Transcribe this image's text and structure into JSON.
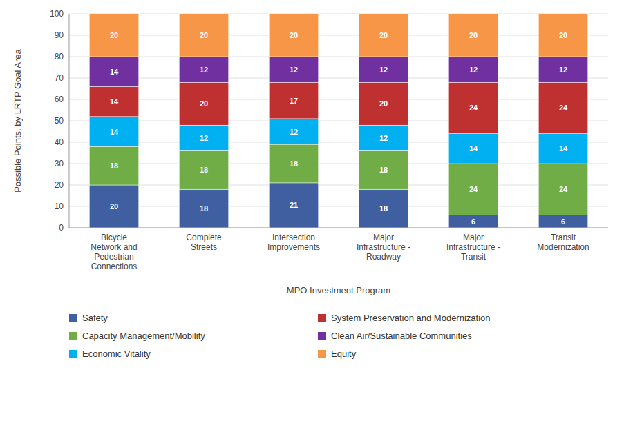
{
  "chart_data": {
    "type": "bar",
    "stacked": true,
    "data_labels": true,
    "grid": true,
    "legend": "bottom",
    "xlabel": "MPO Investment Program",
    "ylabel": "Possible Points, by LRTP Goal Area",
    "categories": [
      "Bicycle\nNetwork and\nPedestrian\nConnections",
      "Complete\nStreets",
      "Intersection\nImprovements",
      "Major\nInfrastructure -\nRoadway",
      "Major\nInfrastructure -\nTransit",
      "Transit\nModernization"
    ],
    "series": [
      {
        "name": "Safety",
        "color": "#3f5fa0",
        "values": [
          20,
          18,
          21,
          18,
          6,
          6
        ]
      },
      {
        "name": "Capacity Management/Mobility",
        "color": "#70ad47",
        "values": [
          18,
          18,
          18,
          18,
          24,
          24
        ]
      },
      {
        "name": "Economic Vitality",
        "color": "#00b0f0",
        "values": [
          14,
          12,
          12,
          12,
          14,
          14
        ]
      },
      {
        "name": "System Preservation and Modernization",
        "color": "#bf3030",
        "values": [
          14,
          20,
          17,
          20,
          24,
          24
        ]
      },
      {
        "name": "Clean Air/Sustainable Communities",
        "color": "#7030a0",
        "values": [
          14,
          12,
          12,
          12,
          12,
          12
        ]
      },
      {
        "name": "Equity",
        "color": "#f79646",
        "values": [
          20,
          20,
          20,
          20,
          20,
          20
        ]
      }
    ],
    "ylim": [
      0,
      100
    ],
    "yticks": [
      0,
      10,
      20,
      30,
      40,
      50,
      60,
      70,
      80,
      90,
      100
    ]
  }
}
